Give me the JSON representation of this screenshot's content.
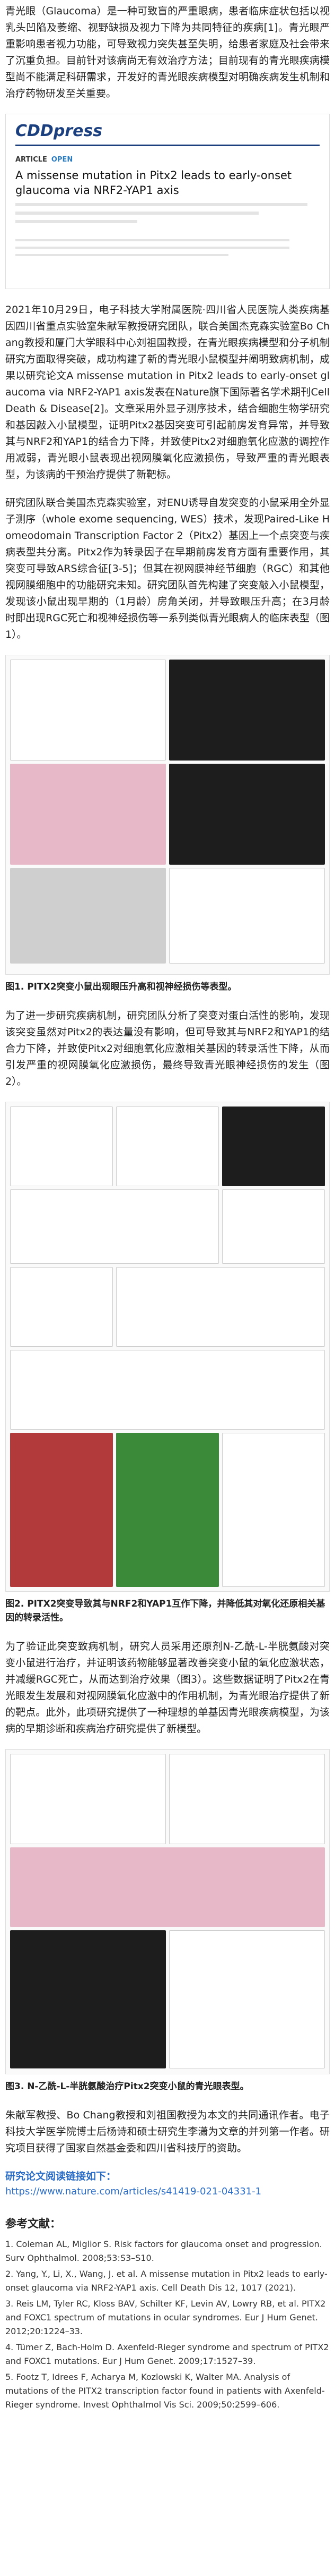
{
  "paragraphs": [
    "青光眼（Glaucoma）是一种可致盲的严重眼病，患者临床症状包括以视乳头凹陷及萎缩、视野缺损及视力下降为共同特征的疾病[1]。青光眼严重影响患者视力功能，可导致视力突失甚至失明，给患者家庭及社会带来了沉重负担。目前针对该病尚无有效治疗方法；目前现有的青光眼疾病模型尚不能满足科研需求，开发好的青光眼疾病模型对明确疾病发生机制和治疗药物研发至关重要。",
    "2021年10月29日，电子科技大学附属医院·四川省人民医院人类疾病基因四川省重点实验室朱献军教授研究团队，联合美国杰克森实验室Bo Chang教授和厦门大学眼科中心刘祖国教授，在青光眼疾病模型和分子机制研究方面取得突破，成功构建了新的青光眼小鼠模型并阐明致病机制，成果以研究论文A missense mutation in Pitx2 leads to early-onset glaucoma via NRF2-YAP1 axis发表在Nature旗下国际著名学术期刊Cell Death & Disease[2]。文章采用外显子测序技术，结合细胞生物学研究和基因敲入小鼠模型，证明Pitx2基因突变可引起前房发育异常，并导致其与NRF2和YAP1的结合力下降，并致使Pitx2对细胞氧化应激的调控作用减弱，青光眼小鼠表现出视网膜氧化应激损伤，导致严重的青光眼表型，为该病的干预治疗提供了新靶标。",
    "研究团队联合美国杰克森实验室，对ENU诱导自发突变的小鼠采用全外显子测序（whole exome sequencing, WES）技术，发现Paired-Like Homeodomain Transcription Factor 2（Pitx2）基因上一个点突变与疾病表型共分离。Pitx2作为转录因子在早期前房发育方面有重要作用，其突变可导致ARS综合征[3-5]；但其在视网膜神经节细胞（RGC）和其他视网膜细胞中的功能研究未知。研究团队首先构建了突变敲入小鼠模型，发现该小鼠出现早期的（1月龄）房角关闭，并导致眼压升高；在3月龄时即出现RGC死亡和视神经损伤等一系列类似青光眼病人的临床表型（图1）。",
    "为了进一步研究疾病机制，研究团队分析了突变对蛋白活性的影响，发现该突变虽然对Pitx2的表达量没有影响，但可导致其与NRF2和YAP1的结合力下降，并致使Pitx2对细胞氧化应激相关基因的转录活性下降，从而引发严重的视网膜氧化应激损伤，最终导致青光眼神经损伤的发生（图2）。",
    "为了验证此突变致病机制，研究人员采用还原剂N-乙酰-L-半胱氨酸对突变小鼠进行治疗，并证明该药物能够显著改善突变小鼠的氧化应激状态，并减缓RGC死亡，从而达到治疗效果（图3）。这些数据证明了Pitx2在青光眼发生发展和对视网膜氧化应激中的作用机制，为青光眼治疗提供了新的靶点。此外，此项研究提供了一种理想的单基因青光眼疾病模型，为该病的早期诊断和疾病治疗研究提供了新模型。",
    "朱献军教授、Bo Chang教授和刘祖国教授为本文的共同通讯作者。电子科技大学医学院博士后杨诗和硕士研究生李潇为文章的并列第一作者。研究项目获得了国家自然基金委和四川省科技厅的资助。"
  ],
  "paper_header": {
    "journal": "CDDpress",
    "label": "ARTICLE",
    "access": "OPEN",
    "title": "A missense mutation in Pitx2 leads to early-onset glaucoma via NRF2-YAP1 axis"
  },
  "figures": [
    {
      "caption": "图1. PITX2突变小鼠出现眼压升高和视神经损伤等表型。"
    },
    {
      "caption": "图2. PITX2突变导致其与NRF2和YAP1互作下降，并降低其对氧化还原相关基因的转录活性。"
    },
    {
      "caption": "图3. N-乙酰-L-半胱氨酸治疗Pitx2突变小鼠的青光眼表型。"
    }
  ],
  "link": {
    "heading": "研究论文阅读链接如下：",
    "url": "https://www.nature.com/articles/s41419-021-04331-1"
  },
  "references": {
    "heading": "参考文献：",
    "items": [
      "1. Coleman AL, Miglior S. Risk factors for glaucoma onset and progression. Surv Ophthalmol. 2008;53:S3–S10.",
      "2. Yang, Y., Li, X., Wang, J. et al. A missense mutation in Pitx2 leads to early-onset glaucoma via NRF2-YAP1 axis. Cell Death Dis 12, 1017 (2021).",
      "3. Reis LM, Tyler RC, Kloss BAV, Schilter KF, Levin AV, Lowry RB, et al. PITX2 and FOXC1 spectrum of mutations in ocular syndromes. Eur J Hum Genet. 2012;20:1224–33.",
      "4. Tümer Z, Bach-Holm D. Axenfeld-Rieger syndrome and spectrum of PITX2 and FOXC1 mutations. Eur J Hum Genet. 2009;17:1527–39.",
      "5. Footz T, Idrees F, Acharya M, Kozlowski K, Walter MA. Analysis of mutations of the PITX2 transcription factor found in patients with Axenfeld-Rieger syndrome. Invest Ophthalmol Vis Sci. 2009;50:2599–606."
    ]
  }
}
